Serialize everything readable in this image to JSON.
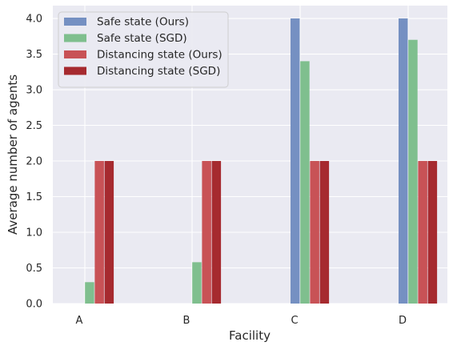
{
  "chart_data": {
    "type": "bar",
    "categories": [
      "A",
      "B",
      "C",
      "D"
    ],
    "series": [
      {
        "name": "Safe state (Ours)",
        "values": [
          0,
          0,
          4.0,
          4.0
        ],
        "color": "#7590c2"
      },
      {
        "name": "Safe state (SGD)",
        "values": [
          0.3,
          0.58,
          3.4,
          3.7
        ],
        "color": "#7fbf8e"
      },
      {
        "name": "Distancing state (Ours)",
        "values": [
          2.0,
          2.0,
          2.0,
          2.0
        ],
        "color": "#c85256"
      },
      {
        "name": "Distancing state (SGD)",
        "values": [
          2.0,
          2.0,
          2.0,
          2.0
        ],
        "color": "#a62a2f"
      }
    ],
    "xlabel": "Facility",
    "ylabel": "Average number of agents",
    "ylim": [
      0,
      4.18
    ],
    "yticks": [
      "0.0",
      "0.5",
      "1.0",
      "1.5",
      "2.0",
      "2.5",
      "3.0",
      "3.5",
      "4.0"
    ],
    "grid": true,
    "legend_position": "top-left",
    "background": "#eaeaf2"
  }
}
